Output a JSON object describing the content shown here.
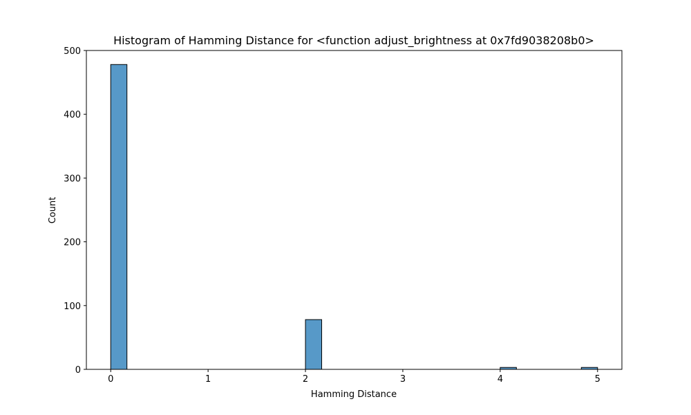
{
  "chart_data": {
    "type": "bar",
    "title": "Histogram of Hamming Distance for <function adjust_brightness at 0x7fd9038208b0>",
    "xlabel": "Hamming Distance",
    "ylabel": "Count",
    "xlim": [
      -0.25,
      5.25
    ],
    "ylim": [
      0,
      500
    ],
    "xticks": [
      0,
      1,
      2,
      3,
      4,
      5
    ],
    "xtick_labels": [
      "0",
      "1",
      "2",
      "3",
      "4",
      "5"
    ],
    "yticks": [
      0,
      100,
      200,
      300,
      400,
      500
    ],
    "ytick_labels": [
      "0",
      "100",
      "200",
      "300",
      "400",
      "500"
    ],
    "bins": [
      {
        "x0": 0.0,
        "x1": 0.1667,
        "count": 478
      },
      {
        "x0": 2.0,
        "x1": 2.1667,
        "count": 78
      },
      {
        "x0": 4.0,
        "x1": 4.1667,
        "count": 3
      },
      {
        "x0": 4.8333,
        "x1": 5.0,
        "count": 3
      }
    ],
    "grid": false,
    "colors": {
      "bar_fill": "#5799c8",
      "bar_edge": "#000000",
      "axis": "#000000"
    }
  }
}
